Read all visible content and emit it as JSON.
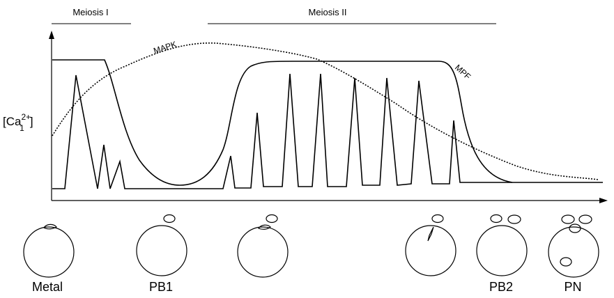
{
  "phases": [
    {
      "label": "Meiosis I"
    },
    {
      "label": "Meiosis II"
    }
  ],
  "curves": [
    {
      "label": "MAPK"
    },
    {
      "label": "MPF"
    }
  ],
  "y_axis_label": {
    "base": "[Ca",
    "sup": "2+",
    "sub": "1",
    "close": "]"
  },
  "stages": [
    {
      "label": "Metal"
    },
    {
      "label": "PB1"
    },
    {
      "label": "PB2"
    },
    {
      "label": "PN"
    }
  ]
}
